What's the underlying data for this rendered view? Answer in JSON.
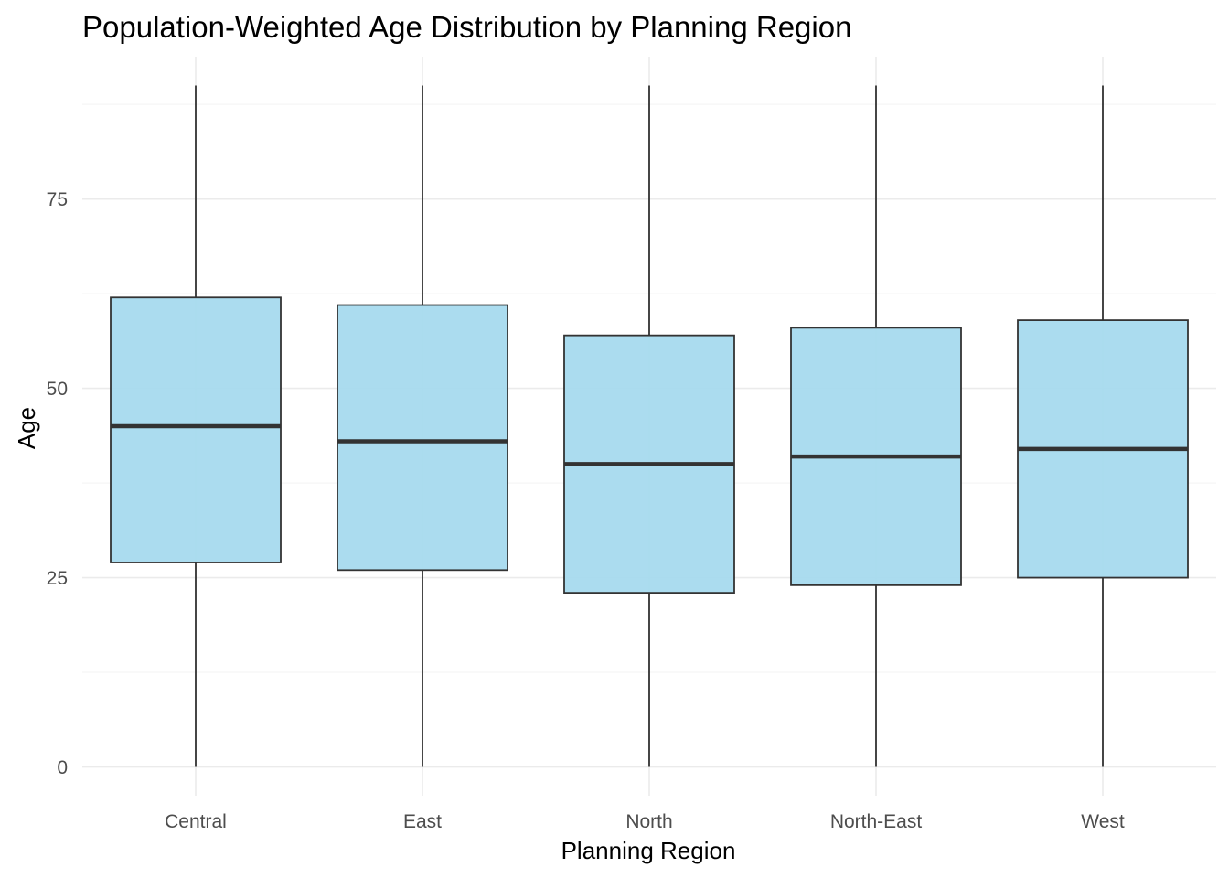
{
  "chart_data": {
    "type": "boxplot",
    "title": "Population-Weighted Age Distribution by Planning Region",
    "xlabel": "Planning Region",
    "ylabel": "Age",
    "categories": [
      "Central",
      "East",
      "North",
      "North-East",
      "West"
    ],
    "boxes": [
      {
        "category": "Central",
        "min": 0,
        "q1": 27,
        "median": 45,
        "q3": 62,
        "max": 90
      },
      {
        "category": "East",
        "min": 0,
        "q1": 26,
        "median": 43,
        "q3": 61,
        "max": 90
      },
      {
        "category": "North",
        "min": 0,
        "q1": 23,
        "median": 40,
        "q3": 57,
        "max": 90
      },
      {
        "category": "North-East",
        "min": 0,
        "q1": 24,
        "median": 41,
        "q3": 58,
        "max": 90
      },
      {
        "category": "West",
        "min": 0,
        "q1": 25,
        "median": 42,
        "q3": 59,
        "max": 90
      }
    ],
    "yticks": [
      0,
      25,
      50,
      75
    ],
    "ytick_labels": [
      "0",
      "25",
      "50",
      "75"
    ],
    "ylim": [
      -3.8,
      93.8
    ],
    "grid": true,
    "legend": "none",
    "colors": {
      "box_fill": "#A6DAEE",
      "box_stroke": "#333333",
      "whisker": "#1a1a1a",
      "grid_major": "#EBEBEB",
      "grid_minor": "#F3F3F3"
    }
  }
}
